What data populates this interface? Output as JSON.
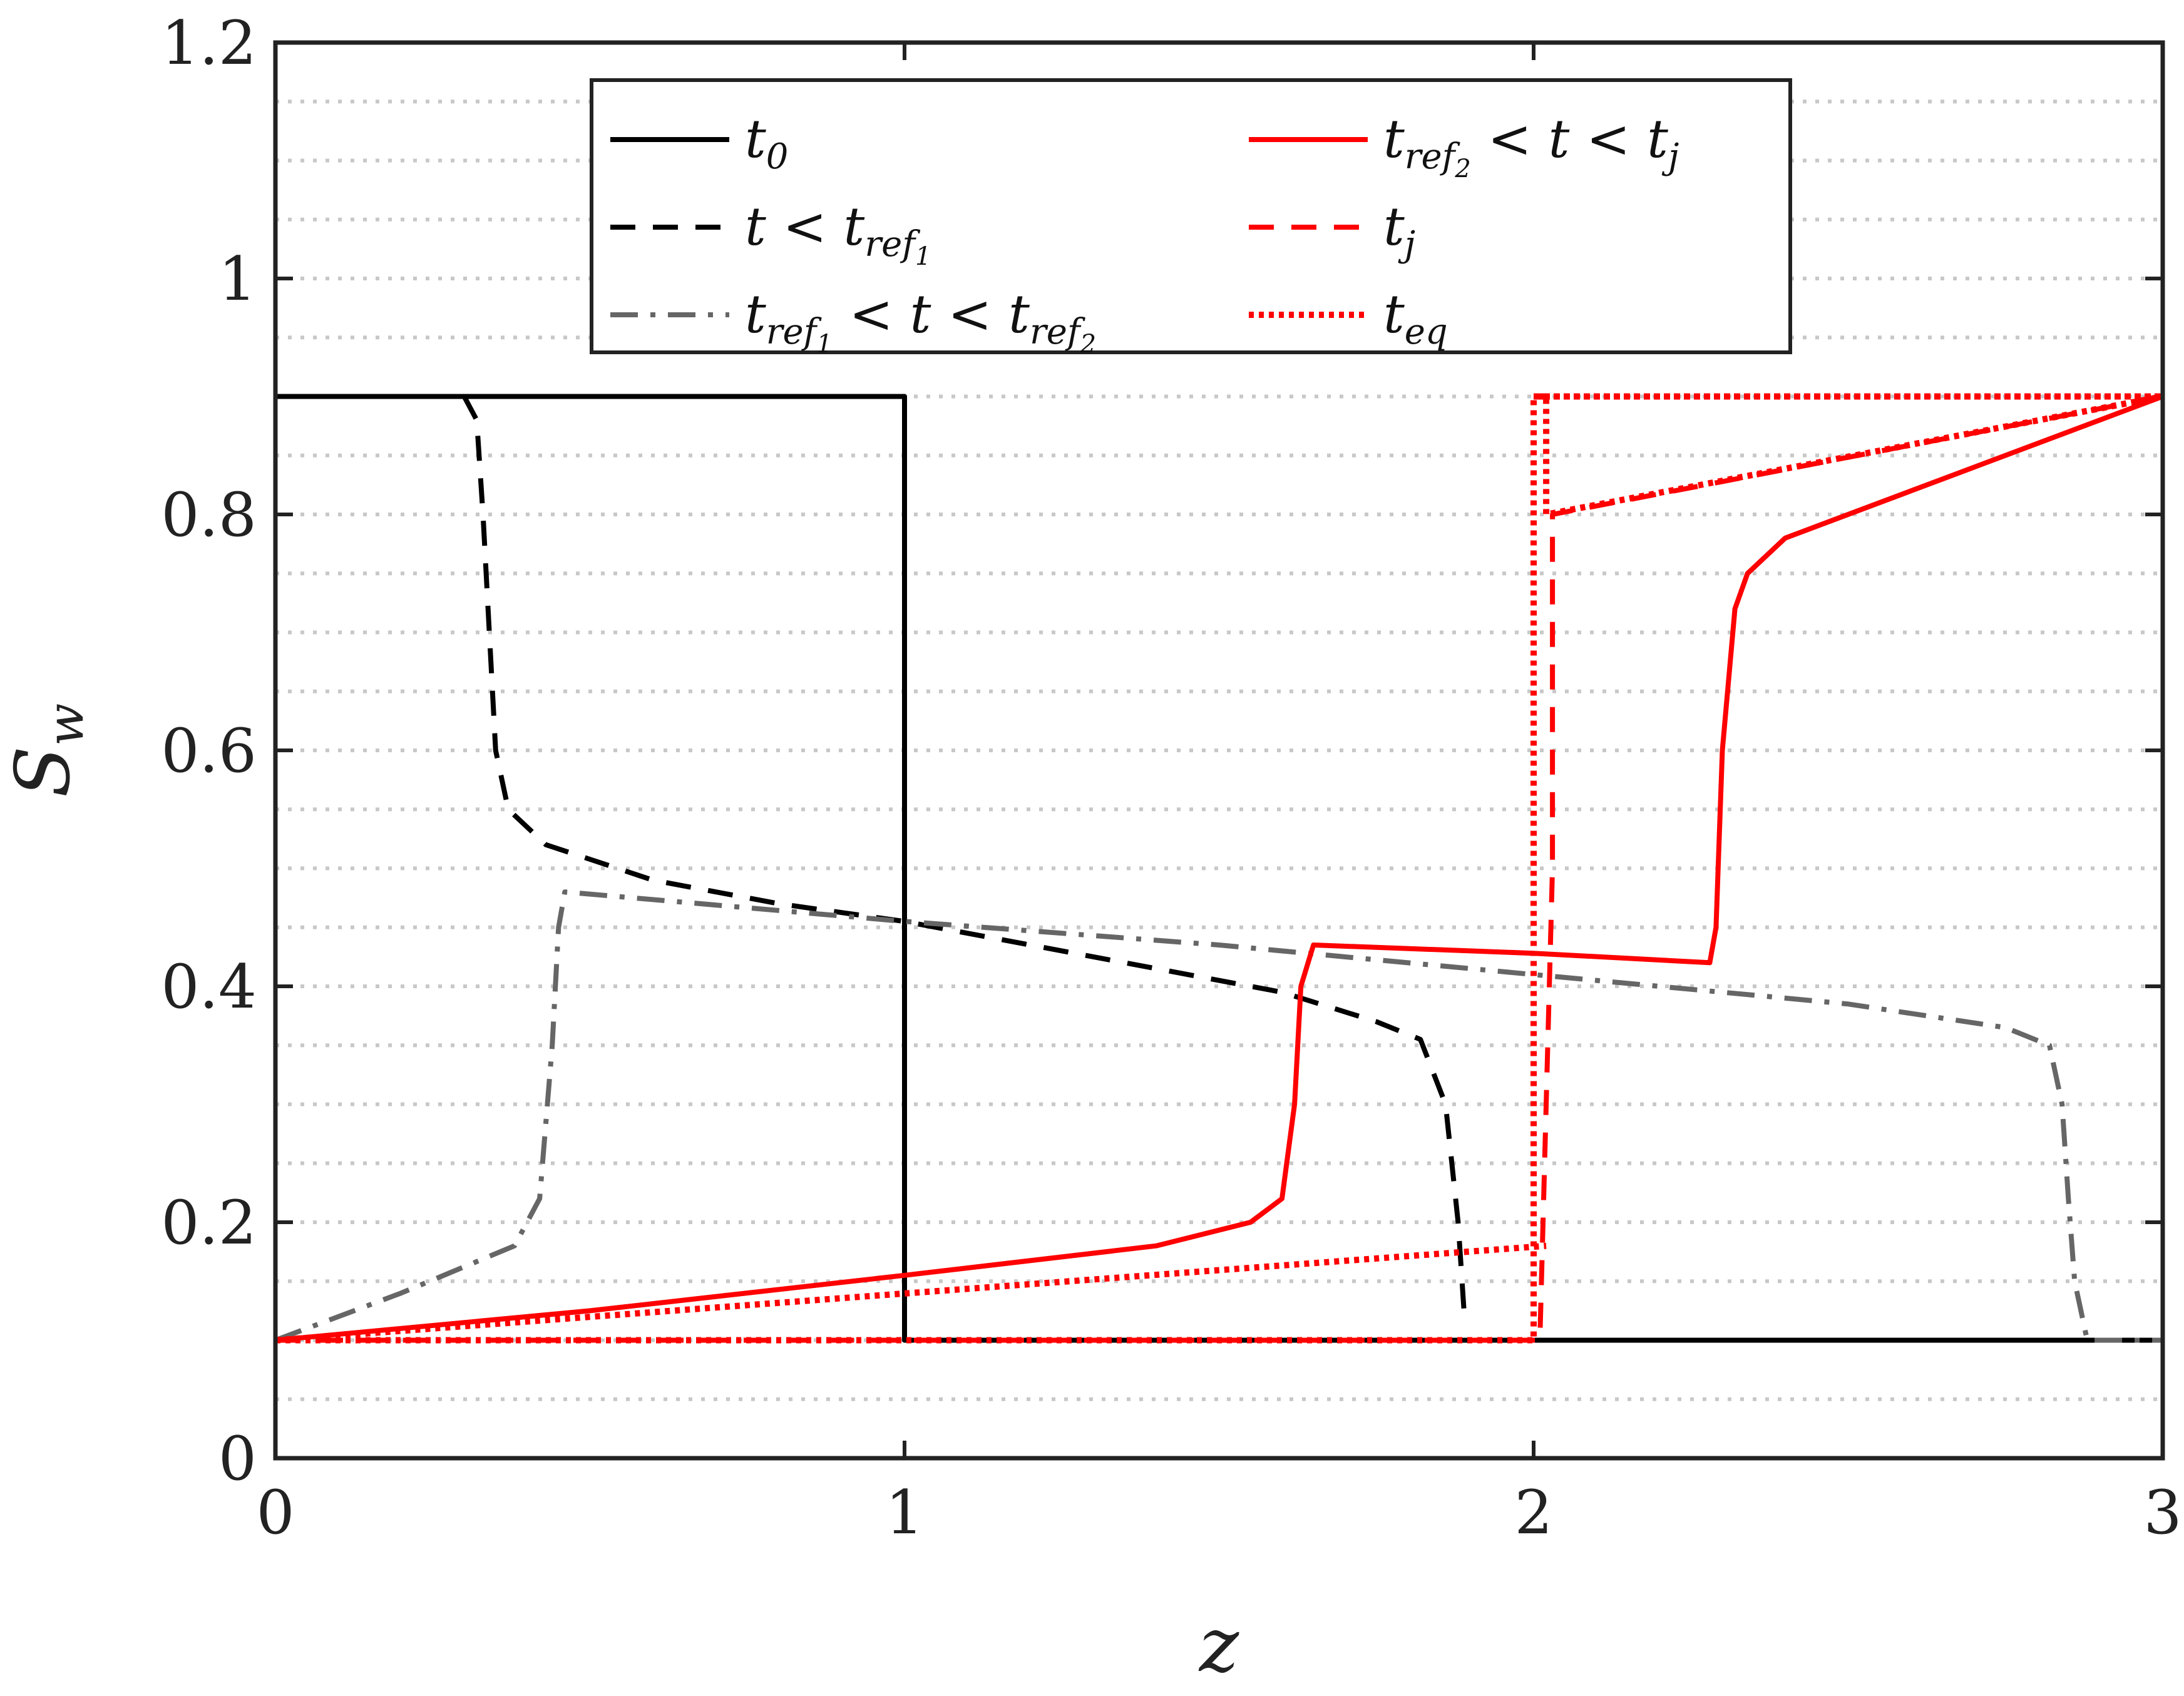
{
  "chart_data": {
    "type": "line",
    "title": "",
    "xlabel": "z",
    "ylabel": "S",
    "ylabel_sub": "w",
    "xlim": [
      0,
      3
    ],
    "ylim": [
      0,
      1.2
    ],
    "xticks": [
      0,
      1,
      2,
      3
    ],
    "xtick_labels": [
      "0",
      "1",
      "2",
      "3"
    ],
    "yticks": [
      0,
      0.2,
      0.4,
      0.6,
      0.8,
      1,
      1.2
    ],
    "ytick_labels": [
      "0",
      "0.2",
      "0.4",
      "0.6",
      "0.8",
      "1",
      "1.2"
    ],
    "grid": "horizontal dotted",
    "grid_step": 0.05,
    "legend_position": "top-center",
    "series": [
      {
        "name": "t_0",
        "color": "#000000",
        "style": "solid",
        "x": [
          0,
          1.0,
          1.0,
          3.0
        ],
        "y": [
          0.9,
          0.9,
          0.1,
          0.1
        ]
      },
      {
        "name": "t < t_ref1",
        "color": "#000000",
        "style": "dashed",
        "x": [
          0.3,
          0.32,
          0.33,
          0.34,
          0.35,
          0.37,
          0.43,
          0.6,
          0.8,
          1.0,
          1.2,
          1.4,
          1.6,
          1.75,
          1.82,
          1.86,
          1.88,
          1.89
        ],
        "y": [
          0.9,
          0.88,
          0.8,
          0.7,
          0.6,
          0.55,
          0.52,
          0.49,
          0.47,
          0.455,
          0.435,
          0.415,
          0.395,
          0.37,
          0.355,
          0.3,
          0.2,
          0.12
        ]
      },
      {
        "name": "t_ref1 < t < t_ref2",
        "color": "#666666",
        "style": "dashdot",
        "x": [
          0,
          0.2,
          0.38,
          0.42,
          0.44,
          0.45,
          0.46,
          1.0,
          1.5,
          2.0,
          2.5,
          2.75,
          2.82,
          2.84,
          2.85,
          2.86,
          2.88,
          3.0
        ],
        "y": [
          0.1,
          0.14,
          0.18,
          0.22,
          0.35,
          0.45,
          0.48,
          0.455,
          0.435,
          0.41,
          0.385,
          0.365,
          0.35,
          0.3,
          0.22,
          0.15,
          0.1,
          0.1
        ]
      },
      {
        "name": "t_ref2 < t < t_j",
        "color": "#ff0000",
        "style": "solid",
        "x": [
          0,
          0.5,
          1.0,
          1.4,
          1.55,
          1.6,
          1.62,
          1.63,
          1.65,
          2.0,
          2.28,
          2.29,
          2.3,
          2.32,
          2.34,
          2.4,
          2.6,
          3.0
        ],
        "y": [
          0.1,
          0.125,
          0.155,
          0.18,
          0.2,
          0.22,
          0.3,
          0.4,
          0.435,
          0.428,
          0.42,
          0.45,
          0.6,
          0.72,
          0.75,
          0.78,
          0.82,
          0.9
        ]
      },
      {
        "name": "t_j",
        "color": "#ff0000",
        "style": "dashed",
        "x": [
          0,
          2.0,
          2.01,
          2.03,
          2.03,
          3.0
        ],
        "y": [
          0.1,
          0.1,
          0.1,
          0.5,
          0.8,
          0.9
        ]
      },
      {
        "name": "t_eq",
        "color": "#ff0000",
        "style": "dotted",
        "x": [
          0,
          2.0,
          2.0,
          3.0,
          3.0,
          2.0,
          2.02,
          2.02,
          3.0
        ],
        "y": [
          0.1,
          0.1,
          0.9,
          0.9,
          0.9,
          0.9,
          0.9,
          0.8,
          0.9
        ]
      },
      {
        "name": "t_eq",
        "color": "#ff0000",
        "style": "dotted",
        "x": [
          0,
          2.02
        ],
        "y": [
          0.1,
          0.18
        ]
      }
    ],
    "legend": [
      {
        "base": "t",
        "sub": "0",
        "rest": "",
        "color": "#000000",
        "style": "solid"
      },
      {
        "base": "t",
        "sub": "",
        "rest": "< t",
        "rest_sub": "ref",
        "rest_subsub": "1",
        "color": "#000000",
        "style": "dashed"
      },
      {
        "base": "t",
        "sub": "ref",
        "subsub": "1",
        "rest": "< t < t",
        "rest_sub": "ref",
        "rest_subsub": "2",
        "color": "#666666",
        "style": "dashdot"
      },
      {
        "base": "t",
        "sub": "ref",
        "subsub": "2",
        "rest": "< t < t",
        "rest_sub": "j",
        "rest_subsub": "",
        "color": "#ff0000",
        "style": "solid"
      },
      {
        "base": "t",
        "sub": "j",
        "rest": "",
        "color": "#ff0000",
        "style": "dashed"
      },
      {
        "base": "t",
        "sub": "eq",
        "rest": "",
        "color": "#ff0000",
        "style": "dotted"
      }
    ]
  }
}
